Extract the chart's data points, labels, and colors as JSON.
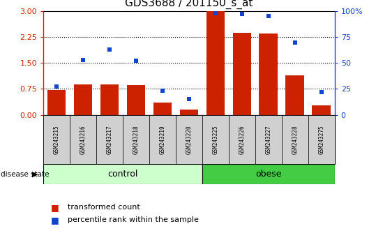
{
  "title": "GDS3688 / 201150_s_at",
  "samples": [
    "GSM243215",
    "GSM243216",
    "GSM243217",
    "GSM243218",
    "GSM243219",
    "GSM243220",
    "GSM243225",
    "GSM243226",
    "GSM243227",
    "GSM243228",
    "GSM243275"
  ],
  "transformed_count": [
    0.72,
    0.88,
    0.88,
    0.85,
    0.35,
    0.15,
    3.0,
    2.38,
    2.35,
    1.15,
    0.28
  ],
  "percentile_rank": [
    27,
    53,
    63,
    52,
    23,
    15,
    98,
    97,
    95,
    70,
    22
  ],
  "bar_color": "#cc2200",
  "dot_color": "#1144cc",
  "left_ylim": [
    0,
    3
  ],
  "left_yticks": [
    0,
    0.75,
    1.5,
    2.25,
    3
  ],
  "right_ylim": [
    0,
    100
  ],
  "right_yticks": [
    0,
    25,
    50,
    75,
    100
  ],
  "right_yticklabels": [
    "0",
    "25",
    "50",
    "75",
    "100%"
  ],
  "control_color": "#ccffcc",
  "obese_color": "#44cc44",
  "disease_state_label": "disease state",
  "control_label": "control",
  "obese_label": "obese",
  "legend_bar": "transformed count",
  "legend_dot": "percentile rank within the sample",
  "dotted_grid": [
    0.75,
    1.5,
    2.25
  ],
  "n_control": 6,
  "n_obese": 5
}
